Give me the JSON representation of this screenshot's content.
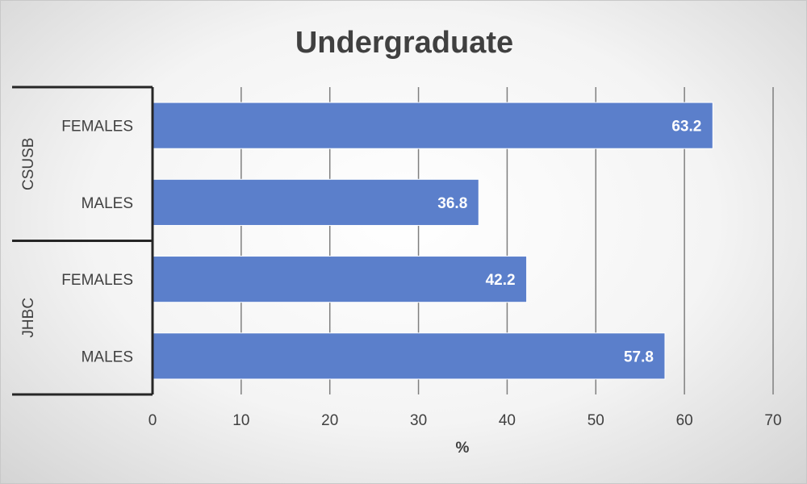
{
  "chart_data": {
    "type": "bar",
    "orientation": "horizontal",
    "title": "Undergraduate",
    "xlabel": "%",
    "xlim": [
      0,
      70
    ],
    "xticks": [
      0,
      10,
      20,
      30,
      40,
      50,
      60,
      70
    ],
    "grid": true,
    "legend": "none",
    "bar_color": "#5b7fcb",
    "groups": [
      {
        "name": "CSUSB",
        "items": [
          {
            "category": "FEMALES",
            "value": 63.2,
            "label": "63.2"
          },
          {
            "category": "MALES",
            "value": 36.8,
            "label": "36.8"
          }
        ]
      },
      {
        "name": "JHBC",
        "items": [
          {
            "category": "FEMALES",
            "value": 42.2,
            "label": "42.2"
          },
          {
            "category": "MALES",
            "value": 57.8,
            "label": "57.8"
          }
        ]
      }
    ]
  }
}
